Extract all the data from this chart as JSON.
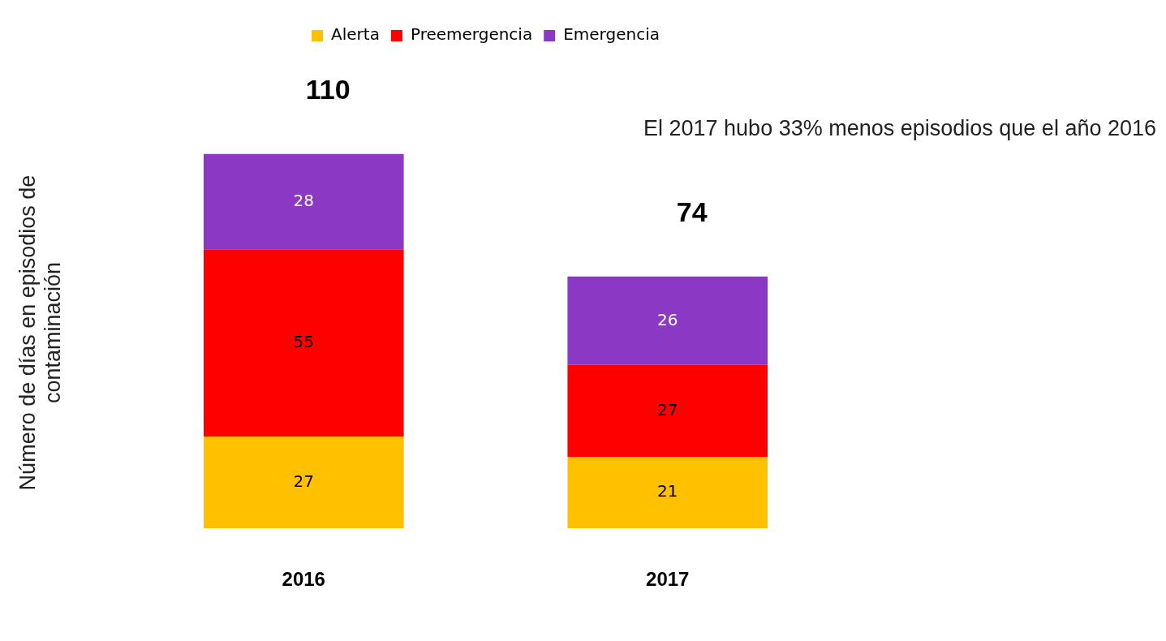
{
  "chart_data": {
    "type": "bar",
    "stacked": true,
    "categories": [
      "2016",
      "2017"
    ],
    "series": [
      {
        "name": "Alerta",
        "color": "#ffc000",
        "values": [
          27,
          21
        ]
      },
      {
        "name": "Preemergencia",
        "color": "#ff0000",
        "values": [
          55,
          27
        ]
      },
      {
        "name": "Emergencia",
        "color": "#8b39c4",
        "values": [
          28,
          26
        ]
      }
    ],
    "ylabel": "Número de días en episodios de contaminación",
    "totals": [
      "110",
      "74"
    ],
    "data_labels": true,
    "legend": "top",
    "grid": false,
    "tick_labels": "x",
    "annotations": [
      "El 2017 hubo 33% menos episodios que el año 2016"
    ]
  }
}
